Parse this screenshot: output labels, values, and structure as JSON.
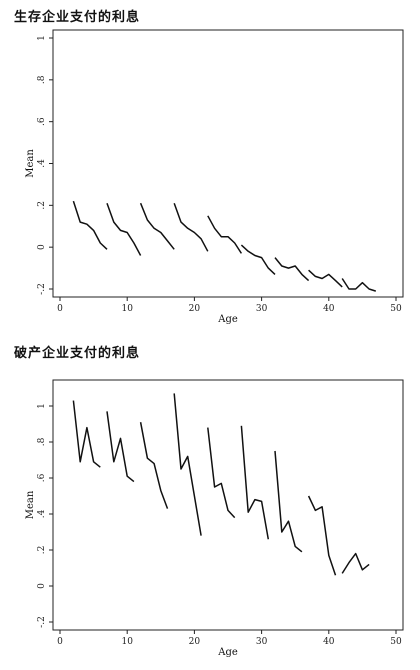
{
  "chart_data": [
    {
      "type": "line",
      "title": "生存企业支付的利息",
      "xlabel": "Age",
      "ylabel": "Mean",
      "xlim": [
        0,
        50
      ],
      "ylim": [
        -0.2,
        1
      ],
      "xticks": [
        0,
        10,
        20,
        30,
        40,
        50
      ],
      "yticks": [
        -0.2,
        0,
        0.2,
        0.4,
        0.6,
        0.8,
        1
      ],
      "ytick_labels": [
        "-.2",
        "0",
        ".2",
        ".4",
        ".6",
        ".8",
        "1"
      ],
      "grid": false,
      "series": [
        {
          "x": [
            2,
            3,
            4,
            5,
            6,
            7
          ],
          "y": [
            0.22,
            0.12,
            0.11,
            0.08,
            0.02,
            -0.01
          ]
        },
        {
          "x": [
            7,
            8,
            9,
            10,
            11,
            12
          ],
          "y": [
            0.21,
            0.12,
            0.08,
            0.07,
            0.02,
            -0.04
          ]
        },
        {
          "x": [
            12,
            13,
            14,
            15,
            16,
            17
          ],
          "y": [
            0.21,
            0.13,
            0.09,
            0.07,
            0.03,
            -0.01
          ]
        },
        {
          "x": [
            17,
            18,
            19,
            20,
            21,
            22
          ],
          "y": [
            0.21,
            0.12,
            0.09,
            0.07,
            0.04,
            -0.02
          ]
        },
        {
          "x": [
            22,
            23,
            24,
            25,
            26,
            27
          ],
          "y": [
            0.15,
            0.09,
            0.05,
            0.05,
            0.02,
            -0.03
          ]
        },
        {
          "x": [
            27,
            28,
            29,
            30,
            31,
            32
          ],
          "y": [
            0.01,
            -0.02,
            -0.04,
            -0.05,
            -0.1,
            -0.13
          ]
        },
        {
          "x": [
            32,
            33,
            34,
            35,
            36,
            37
          ],
          "y": [
            -0.05,
            -0.09,
            -0.1,
            -0.09,
            -0.13,
            -0.16
          ]
        },
        {
          "x": [
            37,
            38,
            39,
            40,
            41,
            42
          ],
          "y": [
            -0.11,
            -0.14,
            -0.15,
            -0.13,
            -0.16,
            -0.19
          ]
        },
        {
          "x": [
            42,
            43,
            44,
            45,
            46,
            47
          ],
          "y": [
            -0.15,
            -0.2,
            -0.2,
            -0.17,
            -0.2,
            -0.21
          ]
        }
      ]
    },
    {
      "type": "line",
      "title": "破产企业支付的利息",
      "xlabel": "Age",
      "ylabel": "Mean",
      "xlim": [
        0,
        50
      ],
      "ylim": [
        -0.2,
        1.1
      ],
      "xticks": [
        0,
        10,
        20,
        30,
        40,
        50
      ],
      "yticks": [
        -0.2,
        0,
        0.2,
        0.4,
        0.6,
        0.8,
        1
      ],
      "ytick_labels": [
        "-.2",
        "0",
        ".2",
        ".4",
        ".6",
        ".8",
        "1"
      ],
      "grid": false,
      "series": [
        {
          "x": [
            2,
            3,
            4,
            5,
            6
          ],
          "y": [
            1.03,
            0.69,
            0.88,
            0.69,
            0.66
          ]
        },
        {
          "x": [
            7,
            8,
            9,
            10,
            11
          ],
          "y": [
            0.97,
            0.69,
            0.82,
            0.61,
            0.58
          ]
        },
        {
          "x": [
            12,
            13,
            14,
            15,
            16
          ],
          "y": [
            0.91,
            0.71,
            0.68,
            0.53,
            0.43
          ]
        },
        {
          "x": [
            17,
            18,
            19,
            20,
            21
          ],
          "y": [
            1.07,
            0.65,
            0.72,
            0.5,
            0.28
          ]
        },
        {
          "x": [
            22,
            23,
            24,
            25,
            26
          ],
          "y": [
            0.88,
            0.55,
            0.57,
            0.42,
            0.38
          ]
        },
        {
          "x": [
            27,
            28,
            29,
            30,
            31
          ],
          "y": [
            0.89,
            0.41,
            0.48,
            0.47,
            0.26
          ]
        },
        {
          "x": [
            32,
            33,
            34,
            35,
            36
          ],
          "y": [
            0.75,
            0.3,
            0.36,
            0.22,
            0.19
          ]
        },
        {
          "x": [
            37,
            38,
            39,
            40,
            41
          ],
          "y": [
            0.5,
            0.42,
            0.44,
            0.17,
            0.06
          ]
        },
        {
          "x": [
            42,
            43,
            44,
            45,
            46
          ],
          "y": [
            0.07,
            0.13,
            0.18,
            0.09,
            0.12
          ]
        }
      ]
    }
  ]
}
